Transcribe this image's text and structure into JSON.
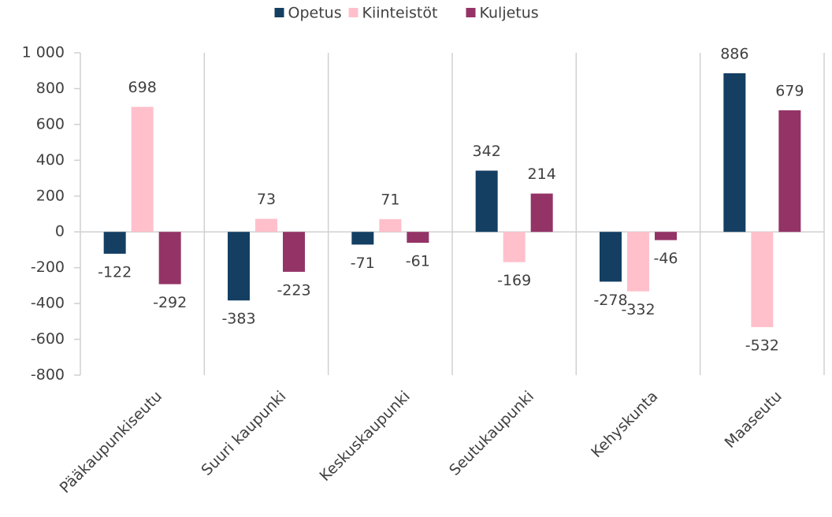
{
  "chart_data": {
    "type": "bar",
    "categories": [
      "Pääkaupunkiseutu",
      "Suuri kaupunki",
      "Keskuskaupunki",
      "Seutukaupunki",
      "Kehyskunta",
      "Maaseutu"
    ],
    "series": [
      {
        "name": "Opetus",
        "color": "#143f63",
        "values": [
          -122,
          -383,
          -71,
          342,
          -278,
          886
        ]
      },
      {
        "name": "Kiinteistöt",
        "color": "#ffc0cb",
        "values": [
          698,
          73,
          71,
          -169,
          -332,
          -532
        ]
      },
      {
        "name": "Kuljetus",
        "color": "#943366",
        "values": [
          -292,
          -223,
          -61,
          214,
          -46,
          679
        ]
      }
    ],
    "ylim": [
      -800,
      1000
    ],
    "yticks": [
      -800,
      -600,
      -400,
      -200,
      0,
      200,
      400,
      600,
      800,
      {
        "value": 1000,
        "label": "1 000"
      }
    ],
    "legend": "top"
  }
}
